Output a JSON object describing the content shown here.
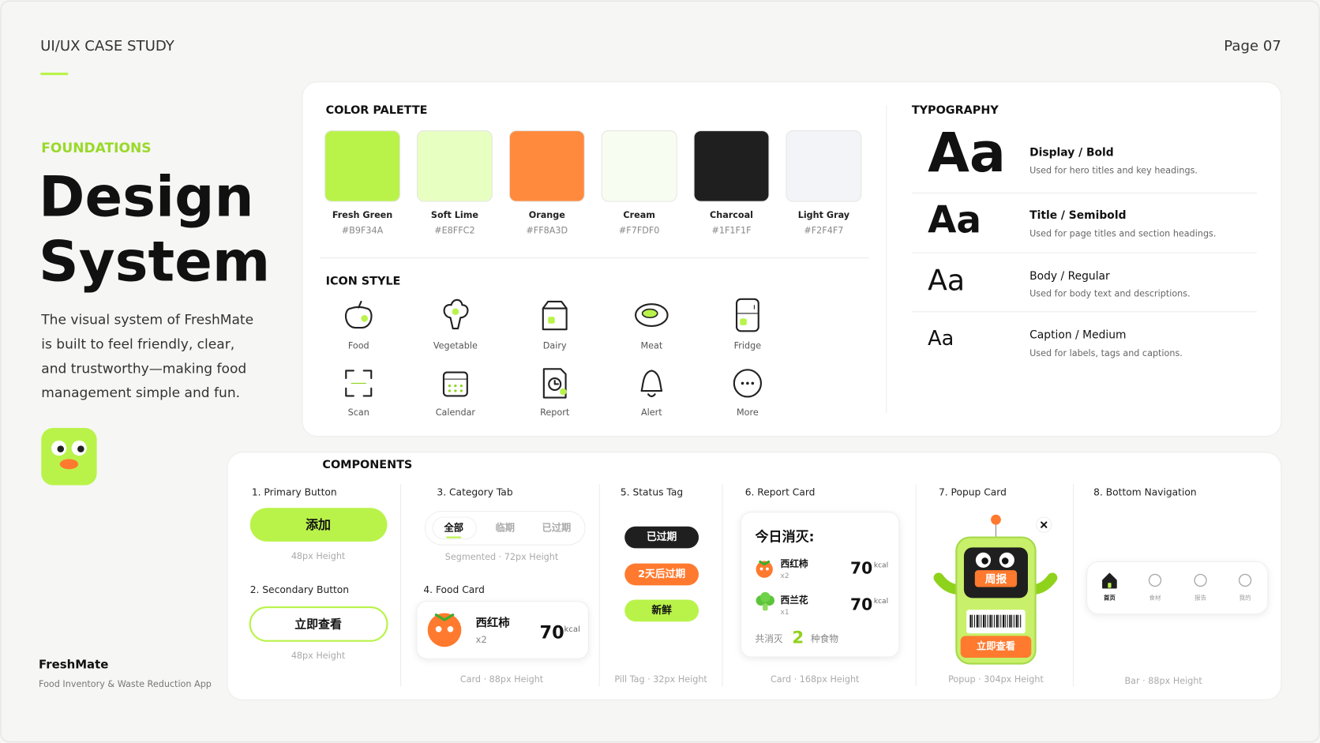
{
  "header": {
    "label": "UI/UX CASE STUDY",
    "page": "Page 07"
  },
  "intro": {
    "eyebrow": "FOUNDATIONS",
    "title_lines": [
      "Design",
      "System"
    ],
    "description_lines": [
      "The visual system of FreshMate",
      "is built to feel friendly, clear,",
      "and trustworthy—making food",
      "management simple and fun."
    ],
    "brand": "FreshMate",
    "tagline": "Food Inventory & Waste Reduction App"
  },
  "color_palette": {
    "title": "COLOR PALETTE",
    "swatches": [
      {
        "name": "Fresh Green",
        "hex": "#B9F34A"
      },
      {
        "name": "Soft Lime",
        "hex": "#E8FFC2"
      },
      {
        "name": "Orange",
        "hex": "#FF8A3D"
      },
      {
        "name": "Cream",
        "hex": "#F7FDF0"
      },
      {
        "name": "Charcoal",
        "hex": "#1F1F1F"
      },
      {
        "name": "Light Gray",
        "hex": "#F2F4F7"
      }
    ]
  },
  "icon_style": {
    "title": "ICON STYLE",
    "icons": [
      "Food",
      "Vegetable",
      "Dairy",
      "Meat",
      "Fridge",
      "Scan",
      "Calendar",
      "Report",
      "Alert",
      "More"
    ]
  },
  "typography": {
    "title": "TYPOGRAPHY",
    "styles": [
      {
        "sample": "Aa",
        "name": "Display / Bold",
        "description": "Used for hero titles and key headings."
      },
      {
        "sample": "Aa",
        "name": "Title / Semibold",
        "description": "Used for page titles and section headings."
      },
      {
        "sample": "Aa",
        "name": "Body / Regular",
        "description": "Used for body text and descriptions."
      },
      {
        "sample": "Aa",
        "name": "Caption / Medium",
        "description": "Used for labels, tags and captions."
      }
    ]
  },
  "components": {
    "title": "COMPONENTS",
    "primary_button": {
      "label": "1. Primary Button",
      "text": "添加",
      "note": "48px Height"
    },
    "secondary_button": {
      "label": "2. Secondary Button",
      "text": "立即查看",
      "note": "48px Height"
    },
    "category_tab": {
      "label": "3. Category Tab",
      "tabs": [
        "全部",
        "临期",
        "已过期"
      ],
      "note": "Segmented · 72px Height"
    },
    "food_card": {
      "label": "4. Food Card",
      "name": "西红柿",
      "quantity": "x2",
      "value": "70",
      "unit": "kcal",
      "note": "Card · 88px Height"
    },
    "status_tag": {
      "label": "5. Status Tag",
      "tags": [
        "已过期",
        "2天后过期",
        "新鲜"
      ],
      "note": "Pill Tag · 32px Height"
    },
    "report_card": {
      "label": "6. Report Card",
      "heading": "今日消灭:",
      "items": [
        {
          "name": "西红柿",
          "quantity": "x2",
          "value": "70",
          "unit": "kcal"
        },
        {
          "name": "西兰花",
          "quantity": "x1",
          "value": "70",
          "unit": "kcal"
        }
      ],
      "summary_prefix": "共消灭",
      "summary_count": "2",
      "summary_suffix": "种食物",
      "note": "Card · 168px Height"
    },
    "popup_card": {
      "label": "7. Popup Card",
      "sign": "周报",
      "button": "立即查看",
      "note": "Popup · 304px Height"
    },
    "bottom_navigation": {
      "label": "8. Bottom Navigation",
      "tabs": [
        "首页",
        "食材",
        "报告",
        "我的"
      ],
      "note": "Bar · 88px Height"
    }
  }
}
